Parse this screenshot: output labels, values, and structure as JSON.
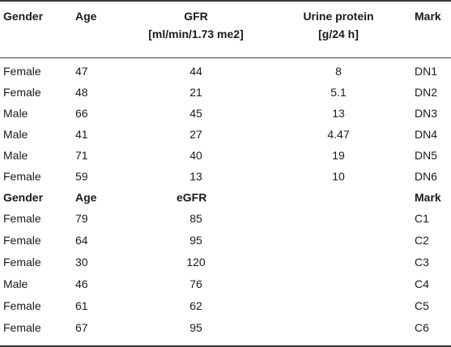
{
  "header": {
    "gender": "Gender",
    "age": "Age",
    "gfr_line1": "GFR",
    "gfr_line2": "[ml/min/1.73 me2]",
    "protein_line1": "Urine protein",
    "protein_line2": "[g/24 h]",
    "mark": "Mark"
  },
  "dn_rows": [
    {
      "gender": "Female",
      "age": "47",
      "gfr": "44",
      "protein": "8",
      "mark": "DN1"
    },
    {
      "gender": "Female",
      "age": "48",
      "gfr": "21",
      "protein": "5.1",
      "mark": "DN2"
    },
    {
      "gender": "Male",
      "age": "66",
      "gfr": "45",
      "protein": "13",
      "mark": "DN3"
    },
    {
      "gender": "Male",
      "age": "41",
      "gfr": "27",
      "protein": "4.47",
      "mark": "DN4"
    },
    {
      "gender": "Male",
      "age": "71",
      "gfr": "40",
      "protein": "19",
      "mark": "DN5"
    },
    {
      "gender": "Female",
      "age": "59",
      "gfr": "13",
      "protein": "10",
      "mark": "DN6"
    }
  ],
  "subheader": {
    "gender": "Gender",
    "age": "Age",
    "egfr": "eGFR",
    "mark": "Mark"
  },
  "c_rows": [
    {
      "gender": "Female",
      "age": "79",
      "egfr": "85",
      "mark": "C1"
    },
    {
      "gender": "Female",
      "age": "64",
      "egfr": "95",
      "mark": "C2"
    },
    {
      "gender": "Female",
      "age": "30",
      "egfr": "120",
      "mark": "C3"
    },
    {
      "gender": "Male",
      "age": "46",
      "egfr": "76",
      "mark": "C4"
    },
    {
      "gender": "Female",
      "age": "61",
      "egfr": "62",
      "mark": "C5"
    },
    {
      "gender": "Female",
      "age": "67",
      "egfr": "95",
      "mark": "C6"
    }
  ]
}
